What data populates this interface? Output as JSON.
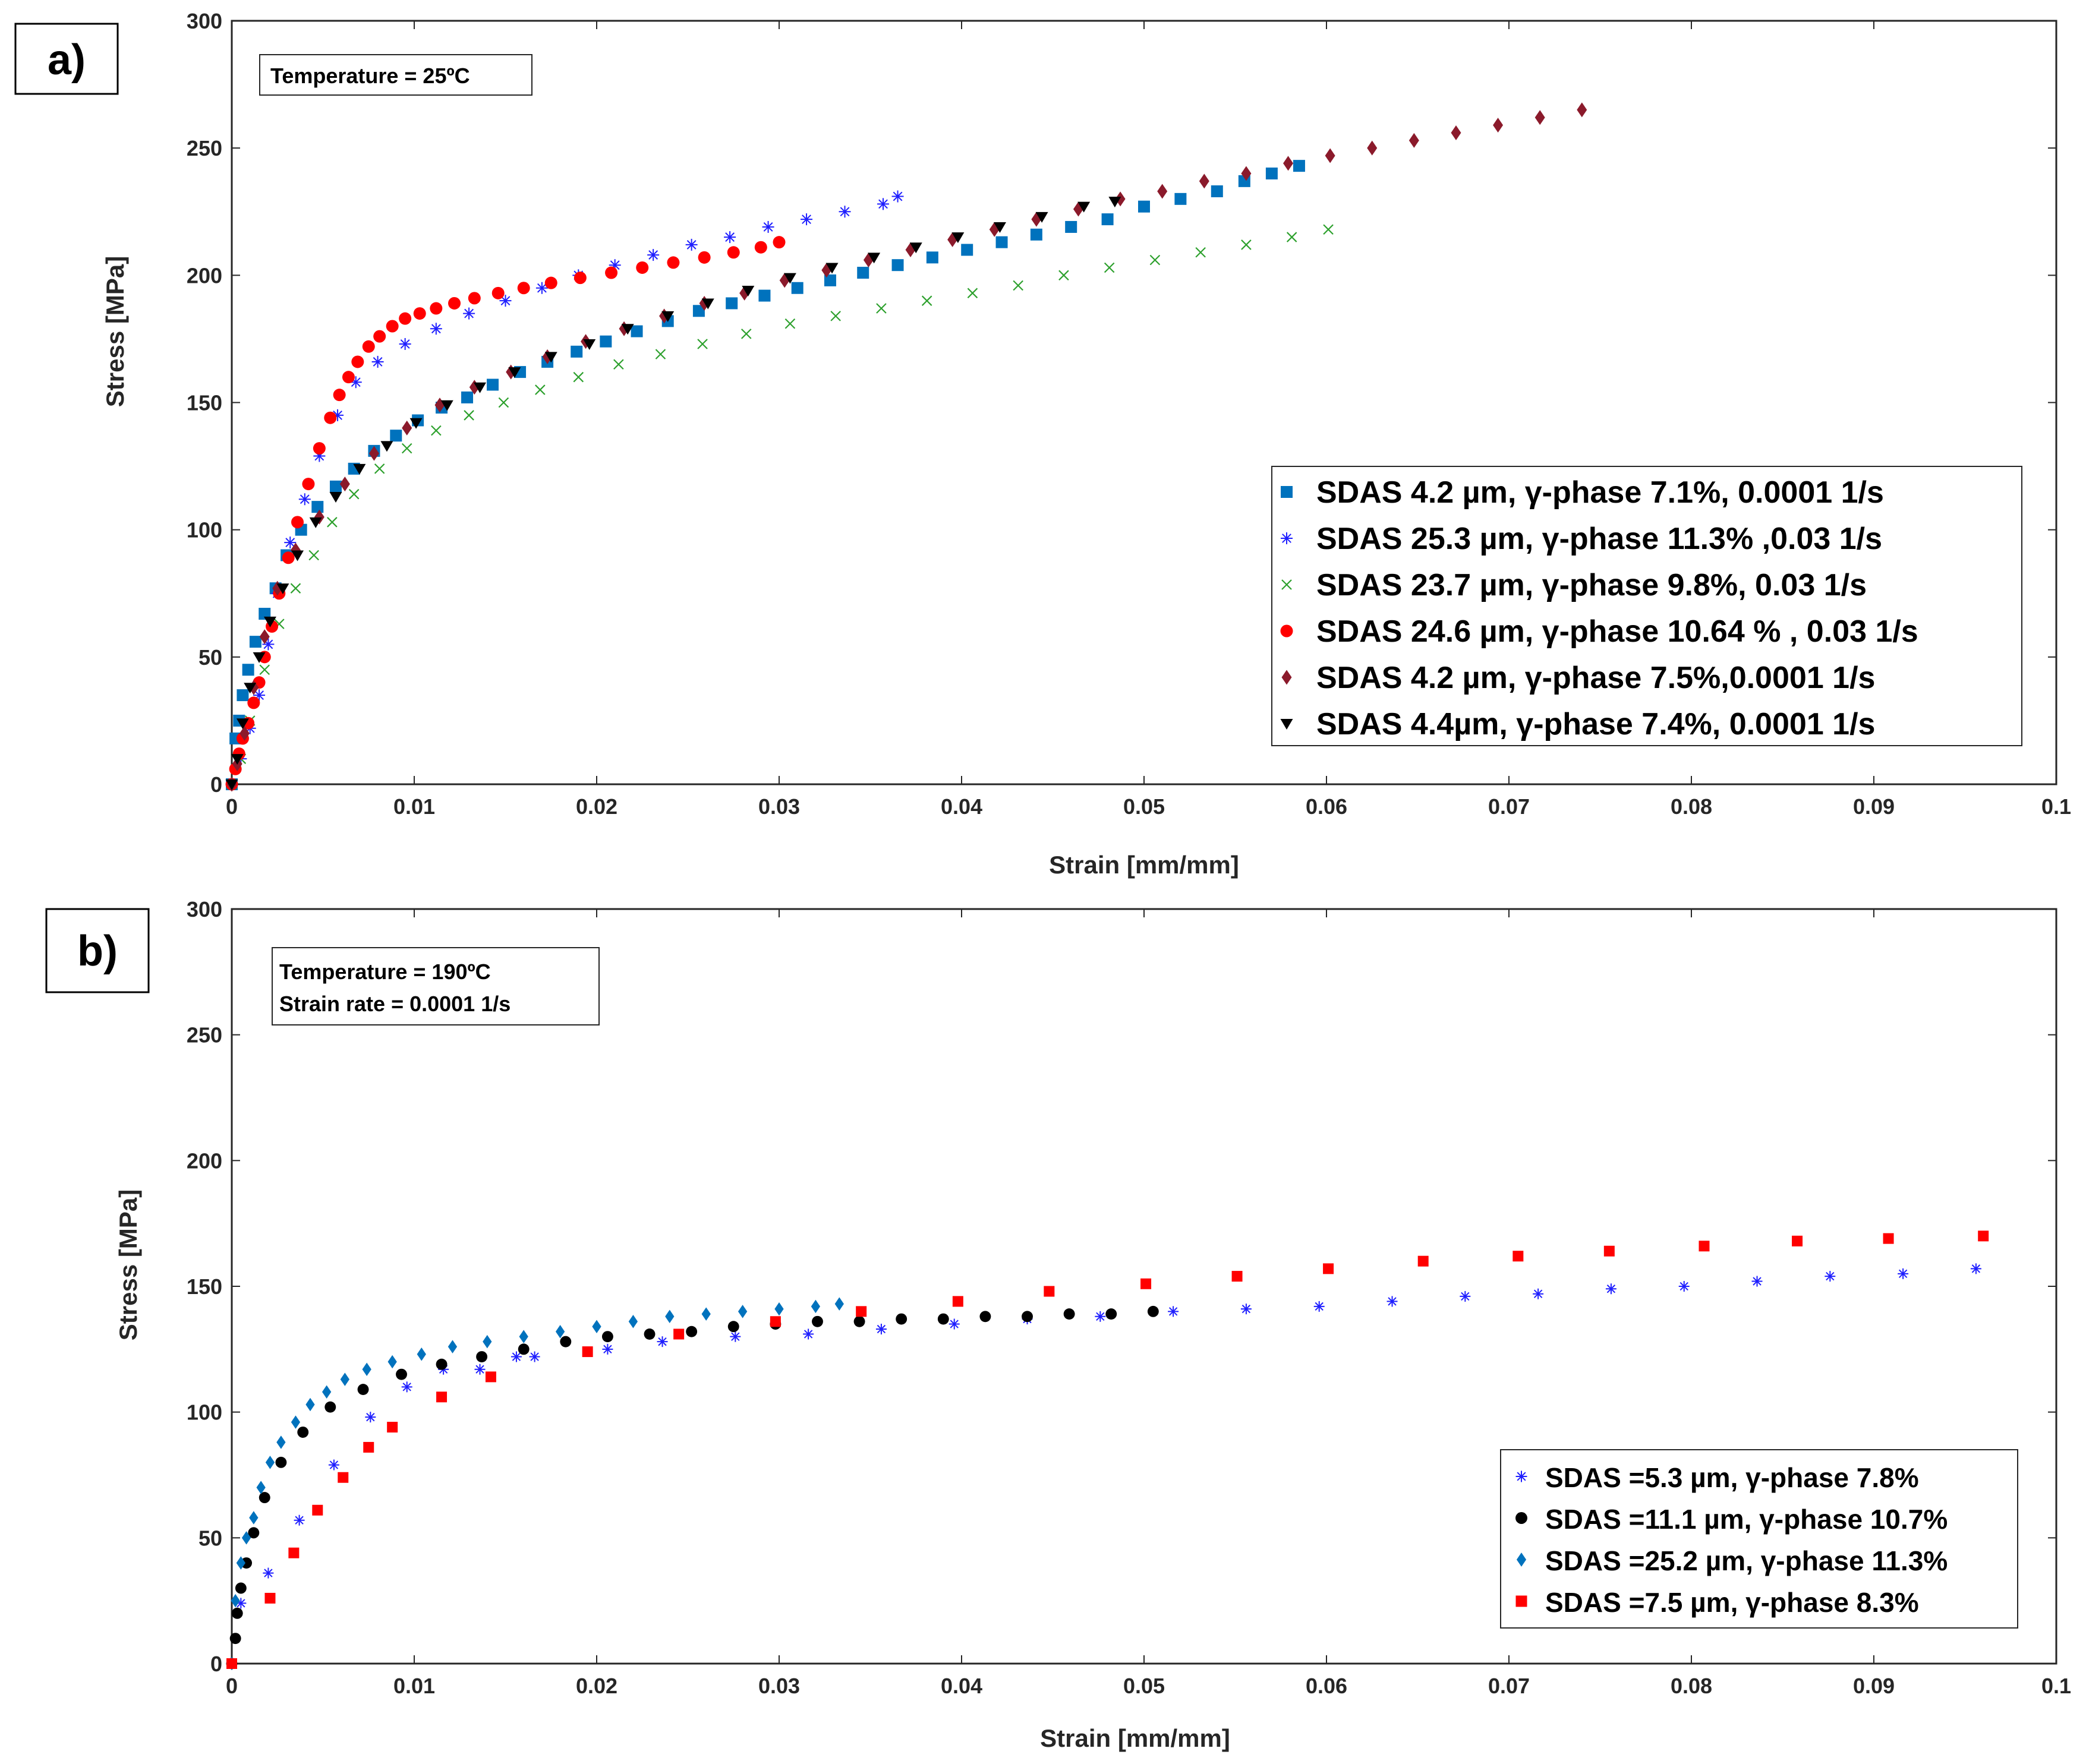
{
  "colors": {
    "blue_square": "#0072BD",
    "blue_star": "#1f1fff",
    "green_x": "#2ca02c",
    "red_circle": "#ff0000",
    "maroon_diamond": "#8B1A2B",
    "black_triangle": "#000000",
    "black_circle": "#000000",
    "blue_diamond": "#0072BD",
    "red_square": "#ff0000"
  },
  "chart_data": [
    {
      "panel_label": "a)",
      "type": "scatter",
      "annotation": [
        "Temperature = 25ºC"
      ],
      "xlabel": "Strain [mm/mm]",
      "ylabel": "Stress [MPa]",
      "xlim": [
        0,
        0.1
      ],
      "ylim": [
        0,
        300
      ],
      "xticks": [
        0,
        0.01,
        0.02,
        0.03,
        0.04,
        0.05,
        0.06,
        0.07,
        0.08,
        0.09,
        0.1
      ],
      "xtick_labels": [
        "0",
        "0.01",
        "0.02",
        "0.03",
        "0.04",
        "0.05",
        "0.06",
        "0.07",
        "0.08",
        "0.09",
        "0.1"
      ],
      "yticks": [
        0,
        50,
        100,
        150,
        200,
        250,
        300
      ],
      "ytick_labels": [
        "0",
        "50",
        "100",
        "150",
        "200",
        "250",
        "300"
      ],
      "legend_position": "lower-right",
      "series": [
        {
          "name": "SDAS 4.2 µm, γ-phase 7.1%, 0.0001 1/s",
          "marker": "square",
          "color": "#0072BD",
          "x": [
            0,
            0.0002,
            0.0004,
            0.0006,
            0.0009,
            0.0013,
            0.0018,
            0.0024,
            0.003,
            0.0038,
            0.0047,
            0.0057,
            0.0067,
            0.0078,
            0.009,
            0.0102,
            0.0115,
            0.0129,
            0.0143,
            0.0158,
            0.0173,
            0.0189,
            0.0205,
            0.0222,
            0.0239,
            0.0256,
            0.0274,
            0.0292,
            0.031,
            0.0328,
            0.0346,
            0.0365,
            0.0384,
            0.0403,
            0.0422,
            0.0441,
            0.046,
            0.048,
            0.05,
            0.052,
            0.054,
            0.0555,
            0.057,
            0.0585
          ],
          "y": [
            0,
            18,
            25,
            35,
            45,
            56,
            67,
            77,
            90,
            100,
            109,
            117,
            124,
            131,
            137,
            143,
            148,
            152,
            157,
            162,
            166,
            170,
            174,
            178,
            182,
            186,
            189,
            192,
            195,
            198,
            201,
            204,
            207,
            210,
            213,
            216,
            219,
            222,
            227,
            230,
            233,
            237,
            240,
            243
          ]
        },
        {
          "name": " SDAS 25.3 µm, γ-phase 11.3% ,0.03 1/s",
          "marker": "star",
          "color": "#1f1fff",
          "x": [
            0,
            0.0005,
            0.001,
            0.0015,
            0.002,
            0.0025,
            0.0032,
            0.004,
            0.0048,
            0.0058,
            0.0068,
            0.008,
            0.0095,
            0.0112,
            0.013,
            0.015,
            0.017,
            0.019,
            0.021,
            0.0231,
            0.0252,
            0.0273,
            0.0294,
            0.0315,
            0.0336,
            0.0357,
            0.0365
          ],
          "y": [
            0,
            10,
            22,
            35,
            55,
            75,
            95,
            112,
            129,
            145,
            158,
            166,
            173,
            179,
            185,
            190,
            195,
            200,
            204,
            208,
            212,
            215,
            219,
            222,
            225,
            228,
            231
          ]
        },
        {
          "name": "SDAS 23.7 µm, γ-phase 9.8%, 0.03 1/s",
          "marker": "x",
          "color": "#2ca02c",
          "x": [
            0,
            0.0005,
            0.001,
            0.0018,
            0.0026,
            0.0035,
            0.0045,
            0.0055,
            0.0067,
            0.0081,
            0.0096,
            0.0112,
            0.013,
            0.0149,
            0.0169,
            0.019,
            0.0212,
            0.0235,
            0.0258,
            0.0282,
            0.0306,
            0.0331,
            0.0356,
            0.0381,
            0.0406,
            0.0431,
            0.0456,
            0.0481,
            0.0506,
            0.0531,
            0.0556,
            0.0581,
            0.0601
          ],
          "y": [
            0,
            10,
            25,
            45,
            63,
            77,
            90,
            103,
            114,
            124,
            132,
            139,
            145,
            150,
            155,
            160,
            165,
            169,
            173,
            177,
            181,
            184,
            187,
            190,
            193,
            196,
            200,
            203,
            206,
            209,
            212,
            215,
            218
          ]
        },
        {
          "name": "SDAS 24.6 µm, γ-phase 10.64 % , 0.03 1/s",
          "marker": "circle",
          "color": "#ff0000",
          "x": [
            0,
            0.0002,
            0.0004,
            0.0006,
            0.0009,
            0.0012,
            0.0015,
            0.0018,
            0.0022,
            0.0026,
            0.0031,
            0.0036,
            0.0042,
            0.0048,
            0.0054,
            0.0059,
            0.0064,
            0.0069,
            0.0075,
            0.0081,
            0.0088,
            0.0095,
            0.0103,
            0.0112,
            0.0122,
            0.0133,
            0.0146,
            0.016,
            0.0175,
            0.0191,
            0.0208,
            0.0225,
            0.0242,
            0.0259,
            0.0275,
            0.029,
            0.03
          ],
          "y": [
            0,
            6,
            12,
            18,
            24,
            32,
            40,
            50,
            62,
            75,
            89,
            103,
            118,
            132,
            144,
            153,
            160,
            166,
            172,
            176,
            180,
            183,
            185,
            187,
            189,
            191,
            193,
            195,
            197,
            199,
            201,
            203,
            205,
            207,
            209,
            211,
            213
          ]
        },
        {
          "name": "SDAS 4.2 µm, γ-phase 7.5%,0.0001 1/s",
          "marker": "diamond",
          "color": "#8B1A2B",
          "x": [
            0,
            0.0003,
            0.0007,
            0.0012,
            0.0018,
            0.0025,
            0.0035,
            0.0048,
            0.0062,
            0.0078,
            0.0096,
            0.0114,
            0.0133,
            0.0153,
            0.0173,
            0.0194,
            0.0215,
            0.0237,
            0.0259,
            0.0281,
            0.0303,
            0.0326,
            0.0349,
            0.0372,
            0.0395,
            0.0418,
            0.0441,
            0.0464,
            0.0487,
            0.051,
            0.0533,
            0.0556,
            0.0579,
            0.0602,
            0.0625,
            0.0648,
            0.0671,
            0.0694,
            0.0717,
            0.074
          ],
          "y": [
            0,
            8,
            20,
            38,
            58,
            77,
            92,
            105,
            118,
            130,
            140,
            149,
            156,
            162,
            168,
            174,
            179,
            184,
            189,
            193,
            198,
            202,
            206,
            210,
            214,
            218,
            222,
            226,
            230,
            233,
            237,
            240,
            244,
            247,
            250,
            253,
            256,
            259,
            262,
            265
          ]
        },
        {
          "name": "SDAS 4.4µm, γ-phase 7.4%, 0.0001 1/s",
          "marker": "triangle-down",
          "color": "#000000",
          "x": [
            0,
            0.0003,
            0.0006,
            0.001,
            0.0015,
            0.0021,
            0.0028,
            0.0036,
            0.0046,
            0.0057,
            0.007,
            0.0085,
            0.0101,
            0.0118,
            0.0136,
            0.0155,
            0.0175,
            0.0196,
            0.0217,
            0.0239,
            0.0261,
            0.0283,
            0.0306,
            0.0329,
            0.0352,
            0.0375,
            0.0398,
            0.0421,
            0.0444,
            0.0467,
            0.0484
          ],
          "y": [
            0,
            10,
            24,
            38,
            50,
            64,
            77,
            90,
            103,
            113,
            124,
            133,
            142,
            149,
            156,
            162,
            168,
            173,
            179,
            184,
            189,
            194,
            199,
            203,
            207,
            211,
            215,
            219,
            223,
            227,
            229
          ]
        }
      ]
    },
    {
      "panel_label": "b)",
      "type": "scatter",
      "annotation": [
        "Temperature = 190ºC",
        "Strain rate = 0.0001 1/s"
      ],
      "xlabel": "Strain [mm/mm]",
      "ylabel": "Stress [MPa]",
      "xlim": [
        0,
        0.1
      ],
      "ylim": [
        0,
        300
      ],
      "xticks": [
        0,
        0.01,
        0.02,
        0.03,
        0.04,
        0.05,
        0.06,
        0.07,
        0.08,
        0.09,
        0.1
      ],
      "xtick_labels": [
        "0",
        "0.01",
        "0.02",
        "0.03",
        "0.04",
        "0.05",
        "0.06",
        "0.07",
        "0.08",
        "0.09",
        "0.1"
      ],
      "yticks": [
        0,
        50,
        100,
        150,
        200,
        250,
        300
      ],
      "ytick_labels": [
        "0",
        "50",
        "100",
        "150",
        "200",
        "250",
        "300"
      ],
      "legend_position": "lower-right",
      "series": [
        {
          "name": "SDAS =5.3 µm, γ-phase 7.8%",
          "marker": "star",
          "color": "#1f1fff",
          "x": [
            0,
            0.0005,
            0.002,
            0.0037,
            0.0056,
            0.0076,
            0.0096,
            0.0116,
            0.0136,
            0.0156,
            0.0166,
            0.0206,
            0.0236,
            0.0276,
            0.0316,
            0.0356,
            0.0396,
            0.0436,
            0.0476,
            0.0516,
            0.0556,
            0.0596,
            0.0636,
            0.0676,
            0.0716,
            0.0756,
            0.0796,
            0.0836,
            0.0876,
            0.0916,
            0.0956
          ],
          "y": [
            0,
            24,
            36,
            57,
            79,
            98,
            110,
            117,
            117,
            122,
            122,
            125,
            128,
            130,
            131,
            133,
            135,
            137,
            138,
            140,
            141,
            142,
            144,
            146,
            147,
            149,
            150,
            152,
            154,
            155,
            157
          ]
        },
        {
          "name": "SDAS =11.1 µm, γ-phase 10.7%",
          "marker": "circle",
          "color": "#000000",
          "x": [
            0,
            0.0002,
            0.0003,
            0.0005,
            0.0008,
            0.0012,
            0.0018,
            0.0027,
            0.0039,
            0.0054,
            0.0072,
            0.0093,
            0.0115,
            0.0137,
            0.016,
            0.0183,
            0.0206,
            0.0229,
            0.0252,
            0.0275,
            0.0298,
            0.0321,
            0.0344,
            0.0367,
            0.039,
            0.0413,
            0.0436,
            0.0459,
            0.0482,
            0.0505
          ],
          "y": [
            0,
            10,
            20,
            30,
            40,
            52,
            66,
            80,
            92,
            102,
            109,
            115,
            119,
            122,
            125,
            128,
            130,
            131,
            132,
            134,
            135,
            136,
            136,
            137,
            137,
            138,
            138,
            139,
            139,
            140
          ]
        },
        {
          "name": "SDAS =25.2 µm, γ-phase 11.3%",
          "marker": "diamond",
          "color": "#0072BD",
          "x": [
            0,
            0.0002,
            0.0005,
            0.0008,
            0.0012,
            0.0016,
            0.0021,
            0.0027,
            0.0035,
            0.0043,
            0.0052,
            0.0062,
            0.0074,
            0.0088,
            0.0104,
            0.0121,
            0.014,
            0.016,
            0.018,
            0.02,
            0.022,
            0.024,
            0.026,
            0.028,
            0.03,
            0.032,
            0.0333
          ],
          "y": [
            0,
            25,
            40,
            50,
            58,
            70,
            80,
            88,
            96,
            103,
            108,
            113,
            117,
            120,
            123,
            126,
            128,
            130,
            132,
            134,
            136,
            138,
            139,
            140,
            141,
            142,
            143
          ]
        },
        {
          "name": "SDAS =7.5 µm, γ-phase 8.3%",
          "marker": "square",
          "color": "#ff0000",
          "x": [
            0,
            0.0021,
            0.0034,
            0.0047,
            0.0061,
            0.0075,
            0.0088,
            0.0115,
            0.0142,
            0.0195,
            0.0245,
            0.0298,
            0.0345,
            0.0398,
            0.0448,
            0.0501,
            0.0551,
            0.0601,
            0.0653,
            0.0705,
            0.0755,
            0.0807,
            0.0858,
            0.0908,
            0.096
          ],
          "y": [
            0,
            26,
            44,
            61,
            74,
            86,
            94,
            106,
            114,
            124,
            131,
            136,
            140,
            144,
            148,
            151,
            154,
            157,
            160,
            162,
            164,
            166,
            168,
            169,
            170
          ]
        }
      ]
    }
  ]
}
